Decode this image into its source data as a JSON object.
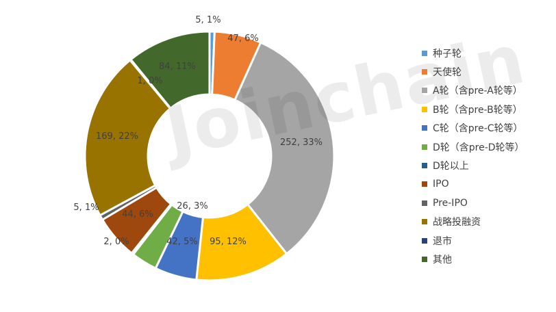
{
  "chart_data": {
    "type": "pie",
    "donut": true,
    "legend_position": "right",
    "slices": [
      {
        "name": "种子轮",
        "value": 5,
        "pct": "1%",
        "color": "#5B9BD5"
      },
      {
        "name": "天使轮",
        "value": 47,
        "pct": "6%",
        "color": "#ED7D31"
      },
      {
        "name": "A轮（含pre-A轮等）",
        "value": 252,
        "pct": "33%",
        "color": "#A5A5A5"
      },
      {
        "name": "B轮（含pre-B轮等）",
        "value": 95,
        "pct": "12%",
        "color": "#FFC000"
      },
      {
        "name": "C轮（含pre-C轮等）",
        "value": 42,
        "pct": "5%",
        "color": "#4472C4"
      },
      {
        "name": "D轮（含pre-D轮等）",
        "value": 26,
        "pct": "3%",
        "color": "#70AD47"
      },
      {
        "name": "D轮以上",
        "value": 2,
        "pct": "0%",
        "color": "#255E91"
      },
      {
        "name": "IPO",
        "value": 44,
        "pct": "6%",
        "color": "#9E480E"
      },
      {
        "name": "Pre-IPO",
        "value": 5,
        "pct": "1%",
        "color": "#636363"
      },
      {
        "name": "战略投融资",
        "value": 169,
        "pct": "22%",
        "color": "#997300"
      },
      {
        "name": "退市",
        "value": 1,
        "pct": "0%",
        "color": "#264478"
      },
      {
        "name": "其他",
        "value": 84,
        "pct": "11%",
        "color": "#43682B"
      }
    ]
  },
  "watermark": "Joinchain"
}
